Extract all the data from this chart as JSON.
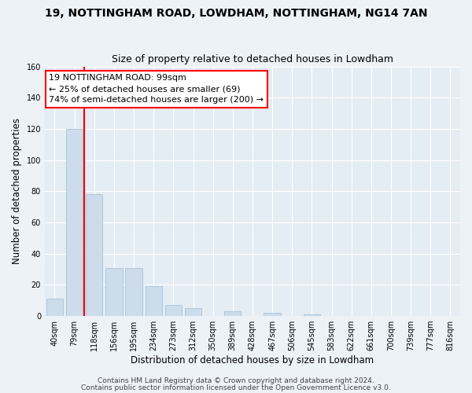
{
  "title": "19, NOTTINGHAM ROAD, LOWDHAM, NOTTINGHAM, NG14 7AN",
  "subtitle": "Size of property relative to detached houses in Lowdham",
  "xlabel": "Distribution of detached houses by size in Lowdham",
  "ylabel": "Number of detached properties",
  "bin_labels": [
    "40sqm",
    "79sqm",
    "118sqm",
    "156sqm",
    "195sqm",
    "234sqm",
    "273sqm",
    "312sqm",
    "350sqm",
    "389sqm",
    "428sqm",
    "467sqm",
    "506sqm",
    "545sqm",
    "583sqm",
    "622sqm",
    "661sqm",
    "700sqm",
    "739sqm",
    "777sqm",
    "816sqm"
  ],
  "bar_heights": [
    11,
    120,
    78,
    31,
    31,
    19,
    7,
    5,
    0,
    3,
    0,
    2,
    0,
    1,
    0,
    0,
    0,
    0,
    0,
    0,
    0
  ],
  "bar_color": "#ccdcea",
  "bar_edgecolor": "#a8c4d8",
  "red_line_bin": 1,
  "annotation_title": "19 NOTTINGHAM ROAD: 99sqm",
  "annotation_line1": "← 25% of detached houses are smaller (69)",
  "annotation_line2": "74% of semi-detached houses are larger (200) →",
  "ylim": [
    0,
    160
  ],
  "yticks": [
    0,
    20,
    40,
    60,
    80,
    100,
    120,
    140,
    160
  ],
  "footer1": "Contains HM Land Registry data © Crown copyright and database right 2024.",
  "footer2": "Contains public sector information licensed under the Open Government Licence v3.0.",
  "bg_color": "#edf2f7",
  "plot_bg_color": "#e4ecf4",
  "grid_color": "#ffffff",
  "title_fontsize": 10,
  "subtitle_fontsize": 9,
  "axis_label_fontsize": 8.5,
  "tick_fontsize": 7,
  "annotation_fontsize": 8,
  "footer_fontsize": 6.5
}
